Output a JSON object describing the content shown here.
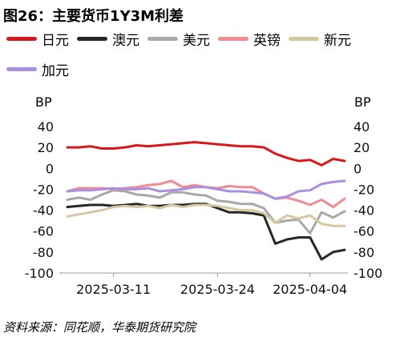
{
  "title": "图26：主要货币1Y3M利差",
  "source": "资料来源：同花顺，华泰期货研究院",
  "chart_data": {
    "type": "line",
    "ylabel_left": "BP",
    "ylabel_right": "BP",
    "ylim": [
      -100,
      40
    ],
    "yticks": [
      40,
      20,
      0,
      -20,
      -40,
      -60,
      -80,
      -100
    ],
    "x_tick_labels": [
      "2025-03-11",
      "2025-03-24",
      "2025-04-04"
    ],
    "x_tick_index": [
      4,
      13,
      21
    ],
    "legend_placement": "top",
    "grid": false,
    "series": [
      {
        "name": "日元",
        "color": "#d7191c",
        "width": 3,
        "values": [
          20,
          20,
          21,
          19,
          19,
          20,
          22,
          21,
          22,
          23,
          24,
          25,
          24,
          23,
          22,
          21,
          21,
          20,
          14,
          10,
          7,
          8,
          3,
          9,
          7
        ]
      },
      {
        "name": "澳元",
        "color": "#262626",
        "width": 3,
        "values": [
          -37,
          -36,
          -35,
          -35,
          -36,
          -35,
          -34,
          -36,
          -36,
          -35,
          -35,
          -34,
          -34,
          -38,
          -42,
          -42,
          -43,
          -45,
          -72,
          -68,
          -66,
          -66,
          -87,
          -80,
          -78
        ]
      },
      {
        "name": "美元",
        "color": "#a8a8a8",
        "width": 3,
        "values": [
          -30,
          -28,
          -30,
          -25,
          -21,
          -22,
          -25,
          -26,
          -28,
          -23,
          -23,
          -25,
          -26,
          -31,
          -32,
          -34,
          -34,
          -38,
          -52,
          -50,
          -49,
          -62,
          -42,
          -47,
          -41
        ]
      },
      {
        "name": "英镑",
        "color": "#f08b93",
        "width": 3,
        "values": [
          -22,
          -19,
          -19,
          -19,
          -20,
          -19,
          -18,
          -16,
          -15,
          -12,
          -18,
          -16,
          -18,
          -19,
          -17,
          -18,
          -18,
          -24,
          -29,
          -28,
          -31,
          -35,
          -30,
          -37,
          -29
        ]
      },
      {
        "name": "新元",
        "color": "#d6c7a1",
        "width": 3,
        "values": [
          -46,
          -44,
          -42,
          -40,
          -37,
          -36,
          -37,
          -36,
          -38,
          -35,
          -37,
          -35,
          -35,
          -36,
          -38,
          -40,
          -40,
          -43,
          -52,
          -45,
          -48,
          -45,
          -53,
          -55,
          -55
        ]
      },
      {
        "name": "加元",
        "color": "#a98fe0",
        "width": 3,
        "values": [
          -22,
          -21,
          -21,
          -20,
          -19,
          -20,
          -20,
          -19,
          -22,
          -21,
          -20,
          -18,
          -18,
          -20,
          -22,
          -22,
          -23,
          -24,
          -29,
          -27,
          -22,
          -21,
          -15,
          -13,
          -12
        ]
      }
    ]
  }
}
